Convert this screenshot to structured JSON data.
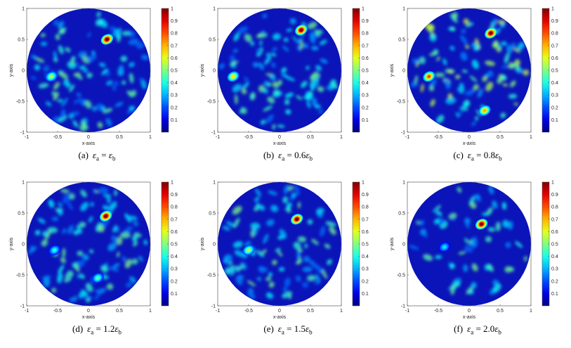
{
  "axis": {
    "xlabel": "x-axis",
    "ylabel": "y-axis",
    "ticks": [
      "-1",
      "-0.5",
      "0",
      "0.5",
      "1"
    ],
    "colorbar_ticks": [
      "1",
      "0.9",
      "0.8",
      "0.7",
      "0.6",
      "0.5",
      "0.4",
      "0.3",
      "0.2",
      "0.1"
    ]
  },
  "colors": {
    "background": "#0a14b8",
    "low": "#00008f",
    "high": "#8b0000"
  },
  "panels": [
    {
      "id": "a",
      "label": "(a)",
      "lhs": "ε",
      "lhs_sub": "a",
      "rel": "=",
      "coef": "",
      "rhs": "ε",
      "rhs_sub": "b"
    },
    {
      "id": "b",
      "label": "(b)",
      "lhs": "ε",
      "lhs_sub": "a",
      "rel": "=",
      "coef": "0.6",
      "rhs": "ε",
      "rhs_sub": "b"
    },
    {
      "id": "c",
      "label": "(c)",
      "lhs": "ε",
      "lhs_sub": "a",
      "rel": "=",
      "coef": "0.8",
      "rhs": "ε",
      "rhs_sub": "b"
    },
    {
      "id": "d",
      "label": "(d)",
      "lhs": "ε",
      "lhs_sub": "a",
      "rel": "=",
      "coef": "1.2",
      "rhs": "ε",
      "rhs_sub": "b"
    },
    {
      "id": "e",
      "label": "(e)",
      "lhs": "ε",
      "lhs_sub": "a",
      "rel": "=",
      "coef": "1.5",
      "rhs": "ε",
      "rhs_sub": "b"
    },
    {
      "id": "f",
      "label": "(f)",
      "lhs": "ε",
      "lhs_sub": "a",
      "rel": "=",
      "coef": "2.0",
      "rhs": "ε",
      "rhs_sub": "b"
    }
  ],
  "chart_data": [
    {
      "type": "heatmap",
      "panel": "a",
      "xlim": [
        -1,
        1
      ],
      "ylim": [
        -1,
        1
      ],
      "clim": [
        0,
        1
      ],
      "peaks": [
        {
          "x": 0.3,
          "y": 0.5,
          "v": 1.0
        },
        {
          "x": -0.6,
          "y": -0.1,
          "v": 0.55
        }
      ]
    },
    {
      "type": "heatmap",
      "panel": "b",
      "xlim": [
        -1,
        1
      ],
      "ylim": [
        -1,
        1
      ],
      "clim": [
        0,
        1
      ],
      "peaks": [
        {
          "x": 0.35,
          "y": 0.65,
          "v": 1.0
        },
        {
          "x": -0.75,
          "y": -0.1,
          "v": 0.65
        }
      ]
    },
    {
      "type": "heatmap",
      "panel": "c",
      "xlim": [
        -1,
        1
      ],
      "ylim": [
        -1,
        1
      ],
      "clim": [
        0,
        1
      ],
      "peaks": [
        {
          "x": 0.35,
          "y": 0.6,
          "v": 1.0
        },
        {
          "x": -0.65,
          "y": -0.1,
          "v": 0.8
        },
        {
          "x": 0.25,
          "y": -0.65,
          "v": 0.7
        }
      ]
    },
    {
      "type": "heatmap",
      "panel": "d",
      "xlim": [
        -1,
        1
      ],
      "ylim": [
        -1,
        1
      ],
      "clim": [
        0,
        1
      ],
      "peaks": [
        {
          "x": 0.28,
          "y": 0.45,
          "v": 1.0
        },
        {
          "x": -0.55,
          "y": -0.1,
          "v": 0.4
        },
        {
          "x": 0.15,
          "y": -0.55,
          "v": 0.45
        }
      ]
    },
    {
      "type": "heatmap",
      "panel": "e",
      "xlim": [
        -1,
        1
      ],
      "ylim": [
        -1,
        1
      ],
      "clim": [
        0,
        1
      ],
      "peaks": [
        {
          "x": 0.28,
          "y": 0.4,
          "v": 1.0
        },
        {
          "x": -0.5,
          "y": -0.1,
          "v": 0.55
        }
      ]
    },
    {
      "type": "heatmap",
      "panel": "f",
      "xlim": [
        -1,
        1
      ],
      "ylim": [
        -1,
        1
      ],
      "clim": [
        0,
        1
      ],
      "peaks": [
        {
          "x": 0.2,
          "y": 0.32,
          "v": 1.0
        },
        {
          "x": -0.4,
          "y": -0.05,
          "v": 0.35
        }
      ]
    }
  ]
}
